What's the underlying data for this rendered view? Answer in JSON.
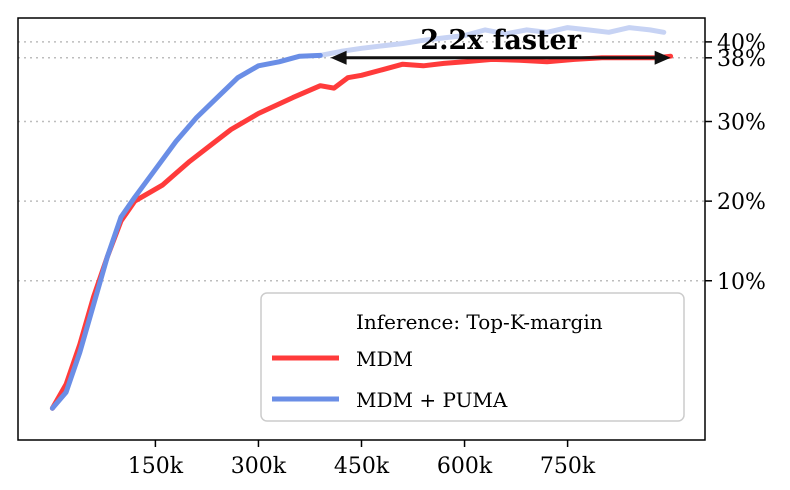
{
  "chart_data": {
    "type": "line",
    "title": "",
    "xlabel": "",
    "ylabel": "",
    "xlim": [
      -50000,
      950000
    ],
    "ylim": [
      -10,
      43
    ],
    "xticks": [
      150000,
      300000,
      450000,
      600000,
      750000
    ],
    "xtick_labels": [
      "150k",
      "300k",
      "450k",
      "600k",
      "750k"
    ],
    "yticks": [
      10,
      20,
      30,
      38,
      40
    ],
    "ytick_labels": [
      "10%",
      "20%",
      "30%",
      "38%",
      "40%"
    ],
    "ytick_side": "right",
    "grid": "horizontal dotted at y ticks",
    "series": [
      {
        "name": "MDM",
        "color": "#ff3b3b",
        "x": [
          0,
          20000,
          40000,
          60000,
          80000,
          100000,
          120000,
          140000,
          160000,
          180000,
          200000,
          230000,
          260000,
          300000,
          350000,
          390000,
          410000,
          430000,
          450000,
          480000,
          510000,
          540000,
          570000,
          600000,
          640000,
          680000,
          720000,
          760000,
          800000,
          840000,
          880000,
          900000
        ],
        "values": [
          -6,
          -3,
          2,
          8,
          13,
          17.5,
          20,
          21,
          22,
          23.5,
          25,
          27,
          29,
          31,
          33,
          34.5,
          34.2,
          35.5,
          35.8,
          36.5,
          37.2,
          37,
          37.3,
          37.5,
          37.8,
          37.7,
          37.5,
          37.8,
          38,
          38,
          38,
          38.2
        ]
      },
      {
        "name": "MDM + PUMA",
        "color": "#6a8ee6",
        "faded_color": "#c7d3f4",
        "x": [
          0,
          20000,
          40000,
          60000,
          80000,
          100000,
          120000,
          150000,
          180000,
          210000,
          240000,
          270000,
          300000,
          330000,
          360000,
          390000,
          420000,
          450000,
          480000,
          510000,
          540000,
          570000,
          600000,
          630000,
          660000,
          690000,
          720000,
          750000,
          780000,
          810000,
          840000,
          870000,
          890000
        ],
        "values": [
          -6,
          -4,
          1,
          7,
          13,
          18,
          20.5,
          24,
          27.5,
          30.5,
          33,
          35.5,
          37,
          37.5,
          38.2,
          38.3,
          38.8,
          39.2,
          39.5,
          39.8,
          40.2,
          40.5,
          40.8,
          41.5,
          41,
          41.5,
          41.2,
          41.8,
          41.5,
          41.2,
          41.8,
          41.5,
          41.2
        ],
        "solid_until_x": 405000
      }
    ],
    "annotations": [
      {
        "type": "double-arrow",
        "x_from": 405000,
        "x_to": 900000,
        "y": 38,
        "label": "2.2x faster"
      }
    ],
    "legend": {
      "placement": "bottom-right",
      "title": "Inference: Top-K-margin",
      "entries": [
        "MDM",
        "MDM + PUMA"
      ]
    }
  }
}
